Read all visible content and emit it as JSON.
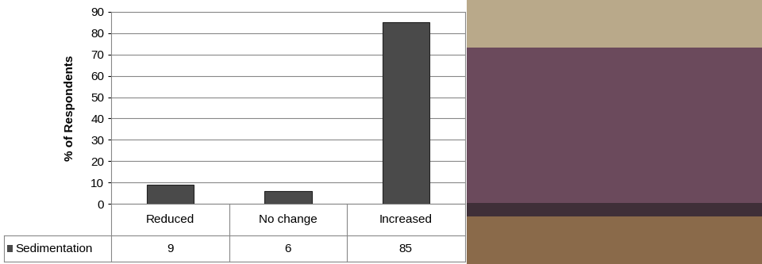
{
  "chart_data": {
    "type": "bar",
    "y_label": "% of Respondents",
    "categories": [
      "Reduced",
      "No change",
      "Increased"
    ],
    "series": [
      {
        "name": "Sedimentation",
        "color": "#4a4a4a",
        "values": [
          9,
          6,
          85
        ]
      }
    ],
    "ylim": [
      0,
      90
    ],
    "yticks": [
      0,
      10,
      20,
      30,
      40,
      50,
      60,
      70,
      80,
      90
    ],
    "grid": true
  }
}
